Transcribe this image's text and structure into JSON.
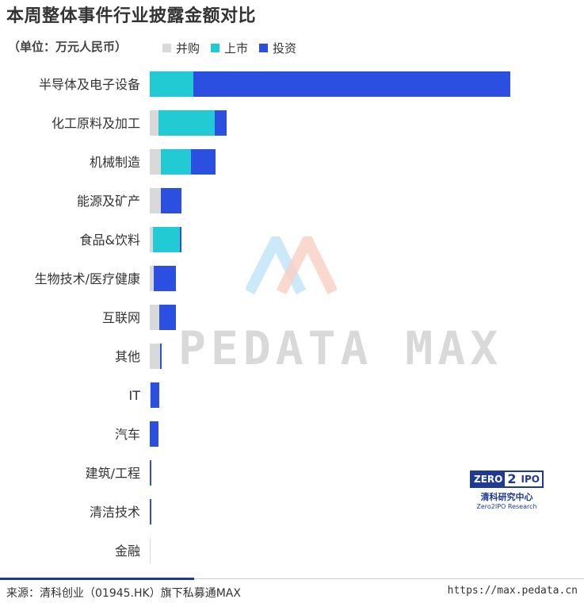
{
  "chart_data": {
    "type": "bar",
    "orientation": "horizontal",
    "stacked": true,
    "title": "本周整体事件行业披露金额对比",
    "unit": "（单位：万元人民币）",
    "categories": [
      "半导体及电子设备",
      "化工原料及加工",
      "机械制造",
      "能源及矿产",
      "食品&饮料",
      "生物技术/医疗健康",
      "互联网",
      "其他",
      "IT",
      "汽车",
      "建筑/工程",
      "清洁技术",
      "金融"
    ],
    "series": [
      {
        "name": "并购",
        "color": "#d9d9d9",
        "values": [
          0,
          11,
          14,
          14,
          4,
          5,
          12,
          13,
          1,
          0,
          0,
          0,
          1
        ]
      },
      {
        "name": "上市",
        "color": "#22cbd4",
        "values": [
          55,
          71,
          38,
          0,
          34,
          0,
          0,
          0,
          0,
          0,
          0,
          0,
          0
        ]
      },
      {
        "name": "投资",
        "color": "#2b4fe0",
        "values": [
          400,
          15,
          31,
          26,
          2,
          28,
          21,
          2,
          11,
          11,
          2,
          2,
          0
        ]
      }
    ],
    "legend_position": "top",
    "grid": false
  },
  "watermark": "PEDATA MAX",
  "brand": {
    "zero": "ZERO",
    "two": "2",
    "ipo": "IPO",
    "cn": "清科研究中心",
    "en": "Zero2IPO Research"
  },
  "footer": {
    "source": "来源：清科创业（01945.HK）旗下私募通MAX",
    "url": "https://max.pedata.cn"
  }
}
